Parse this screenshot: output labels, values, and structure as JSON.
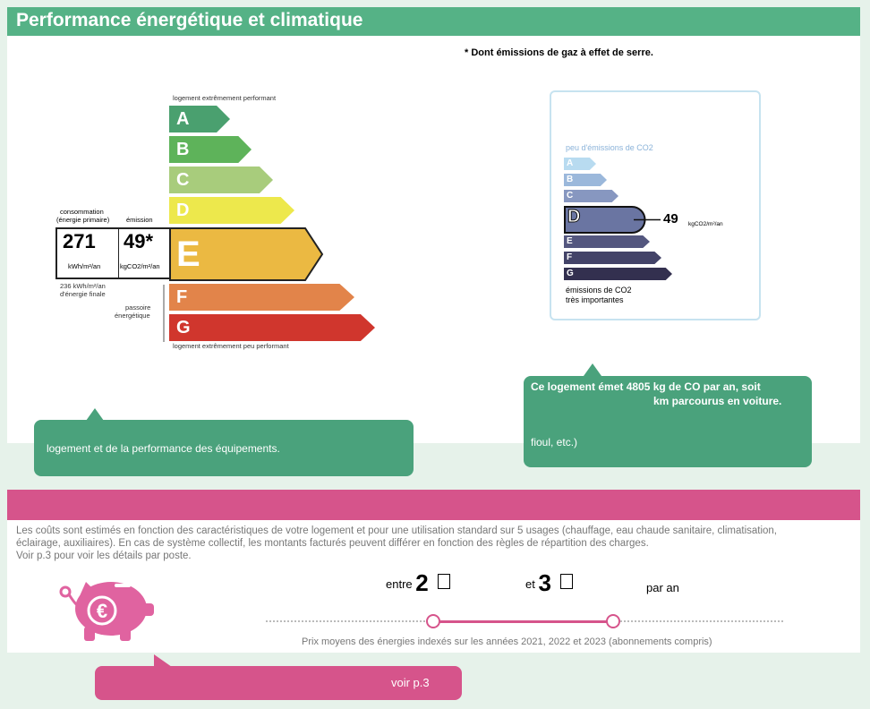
{
  "header": {
    "title": "Performance énergétique et climatique"
  },
  "footnote": "* Dont émissions de gaz à effet de serre.",
  "dpe": {
    "top_caption": "logement extrêmement performant",
    "bottom_caption": "logement extrêmement peu performant",
    "consumption_label": "consommation",
    "consumption_sublabel": "(énergie primaire)",
    "emission_label": "émission",
    "consumption_value": "271",
    "consumption_unit": "kWh/m²/an",
    "emission_value": "49*",
    "emission_unit": "kgCO2/m²/an",
    "final_energy_line1": "236 kWh/m²/an",
    "final_energy_line2": "d'énergie finale",
    "passoire_line1": "passoire",
    "passoire_line2": "énergétique",
    "current_class": "E",
    "classes": [
      {
        "letter": "A",
        "color": "#4aa06f"
      },
      {
        "letter": "B",
        "color": "#5eb35a"
      },
      {
        "letter": "C",
        "color": "#a8cc7c"
      },
      {
        "letter": "D",
        "color": "#ede84c"
      },
      {
        "letter": "E",
        "color": "#ebb942"
      },
      {
        "letter": "F",
        "color": "#e2844a"
      },
      {
        "letter": "G",
        "color": "#d0362d"
      }
    ]
  },
  "co2": {
    "title": "peu d'émissions de CO2",
    "current_class": "D",
    "value": "49",
    "unit": "kgCO2/m²/an",
    "footer_line1": "émissions de CO2",
    "footer_line2": "très importantes",
    "classes": [
      {
        "letter": "A",
        "color": "#b8dbf0"
      },
      {
        "letter": "B",
        "color": "#9bb8db"
      },
      {
        "letter": "C",
        "color": "#8797c0"
      },
      {
        "letter": "D",
        "color": "#6a75a2"
      },
      {
        "letter": "E",
        "color": "#54577f"
      },
      {
        "letter": "F",
        "color": "#434368"
      },
      {
        "letter": "G",
        "color": "#33304f"
      }
    ]
  },
  "bubble_left": {
    "text": "logement et de la performance des équipements."
  },
  "bubble_right": {
    "line1": "Ce logement émet 4805  kg de CO  par an, soit",
    "line2": "km parcourus en voiture.",
    "line3": "fioul, etc.)"
  },
  "costs": {
    "description_line1": "Les coûts sont estimés en fonction des caractéristiques de votre logement et pour une utilisation standard sur 5 usages (chauffage, eau chaude sanitaire, climatisation,",
    "description_line2": "éclairage, auxiliaires). En cas de système collectif, les montants facturés peuvent différer en fonction des règles de répartition des charges.",
    "description_line3": "Voir p.3 pour voir les détails par poste.",
    "range_from_prefix": "entre",
    "range_from_value": "2",
    "range_to_prefix": "et",
    "range_to_value": "3",
    "range_suffix": "par an",
    "caption": "Prix moyens des énergies indexés sur les années 2021, 2022 et 2023  (abonnements compris)",
    "see_page": "voir p.3"
  },
  "colors": {
    "green": "#55b286",
    "pink": "#d6548b"
  }
}
